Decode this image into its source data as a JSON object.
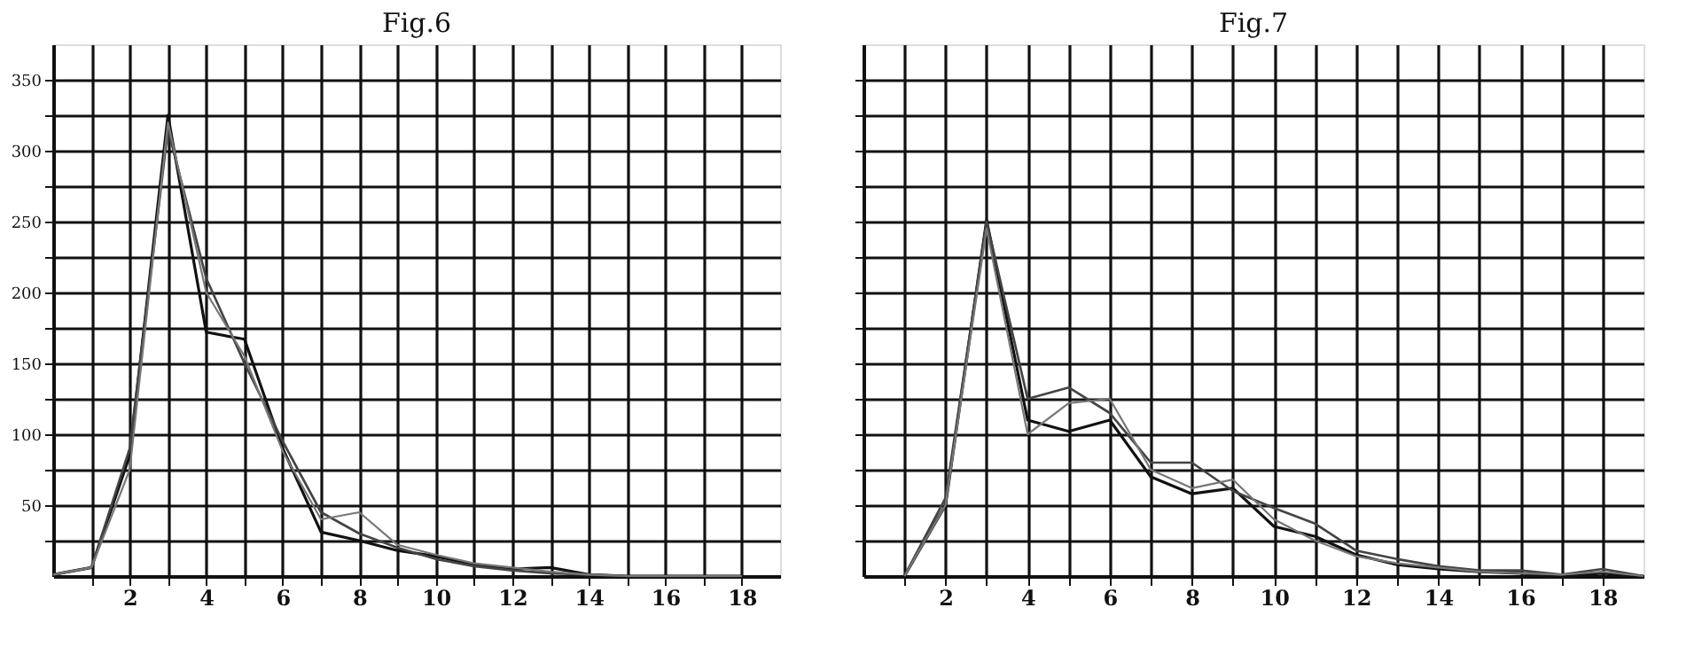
{
  "chart_data": [
    {
      "type": "line",
      "title": "Fig.6",
      "x": [
        0,
        1,
        2,
        3,
        4,
        5,
        6,
        7,
        8,
        9,
        10,
        11,
        12,
        13,
        14,
        15,
        16,
        17,
        18
      ],
      "series": [
        {
          "color": "#111111",
          "values": [
            1,
            6,
            85,
            325,
            172,
            167,
            90,
            31,
            25,
            18,
            14,
            8,
            5,
            6,
            1,
            0,
            0,
            0,
            0
          ]
        },
        {
          "color": "#444444",
          "values": [
            1,
            6,
            90,
            315,
            210,
            150,
            95,
            45,
            30,
            20,
            12,
            7,
            4,
            2,
            1,
            0,
            0,
            0,
            0
          ]
        },
        {
          "color": "#777777",
          "values": [
            1,
            6,
            75,
            320,
            200,
            155,
            88,
            40,
            45,
            22,
            15,
            9,
            6,
            3,
            1,
            0,
            0,
            0,
            0
          ]
        }
      ],
      "xlim": [
        0,
        19
      ],
      "ylim": [
        0,
        375
      ],
      "xticks": [
        {
          "value": 1,
          "label": null
        },
        2,
        {
          "value": 3,
          "label": null
        },
        4,
        {
          "value": 5,
          "label": null
        },
        6,
        {
          "value": 7,
          "label": null
        },
        8,
        {
          "value": 9,
          "label": null
        },
        10,
        {
          "value": 11,
          "label": null
        },
        12,
        {
          "value": 13,
          "label": null
        },
        14,
        {
          "value": 15,
          "label": null
        },
        16,
        {
          "value": 17,
          "label": null
        },
        18
      ],
      "yticks": [
        {
          "value": 25,
          "label": null
        },
        50,
        {
          "value": 75,
          "label": null
        },
        100,
        {
          "value": 125,
          "label": null
        },
        150,
        {
          "value": 175,
          "label": null
        },
        200,
        {
          "value": 225,
          "label": null
        },
        250,
        {
          "value": 275,
          "label": null
        },
        300,
        {
          "value": 325,
          "label": null
        },
        350
      ],
      "grid": true
    },
    {
      "type": "line",
      "title": "Fig.7",
      "x": [
        1,
        2,
        3,
        4,
        5,
        6,
        7,
        8,
        9,
        10,
        11,
        12,
        13,
        14,
        15,
        16,
        17,
        18,
        19
      ],
      "series": [
        {
          "color": "#111111",
          "values": [
            0,
            50,
            251,
            110,
            102,
            110,
            70,
            58,
            62,
            35,
            28,
            15,
            8,
            5,
            3,
            2,
            0,
            2,
            0
          ]
        },
        {
          "color": "#444444",
          "values": [
            0,
            55,
            250,
            125,
            133,
            115,
            80,
            80,
            60,
            48,
            37,
            18,
            12,
            7,
            4,
            4,
            1,
            5,
            0
          ]
        },
        {
          "color": "#777777",
          "values": [
            0,
            50,
            245,
            100,
            122,
            125,
            75,
            62,
            68,
            40,
            25,
            14,
            9,
            6,
            3,
            2,
            1,
            3,
            0
          ]
        }
      ],
      "xlim": [
        0,
        19
      ],
      "ylim": [
        0,
        375
      ],
      "xticks": [
        {
          "value": 1,
          "label": null
        },
        2,
        {
          "value": 3,
          "label": null
        },
        4,
        {
          "value": 5,
          "label": null
        },
        6,
        {
          "value": 7,
          "label": null
        },
        8,
        {
          "value": 9,
          "label": null
        },
        10,
        {
          "value": 11,
          "label": null
        },
        12,
        {
          "value": 13,
          "label": null
        },
        14,
        {
          "value": 15,
          "label": null
        },
        16,
        {
          "value": 17,
          "label": null
        },
        18
      ],
      "yticks": [
        {
          "value": 25,
          "label": null
        },
        50,
        {
          "value": 75,
          "label": null
        },
        100,
        {
          "value": 125,
          "label": null
        },
        150,
        {
          "value": 175,
          "label": null
        },
        200,
        {
          "value": 225,
          "label": null
        },
        250,
        {
          "value": 275,
          "label": null
        },
        300,
        {
          "value": 325,
          "label": null
        },
        350
      ],
      "tick_labels": "x",
      "grid": true
    }
  ]
}
